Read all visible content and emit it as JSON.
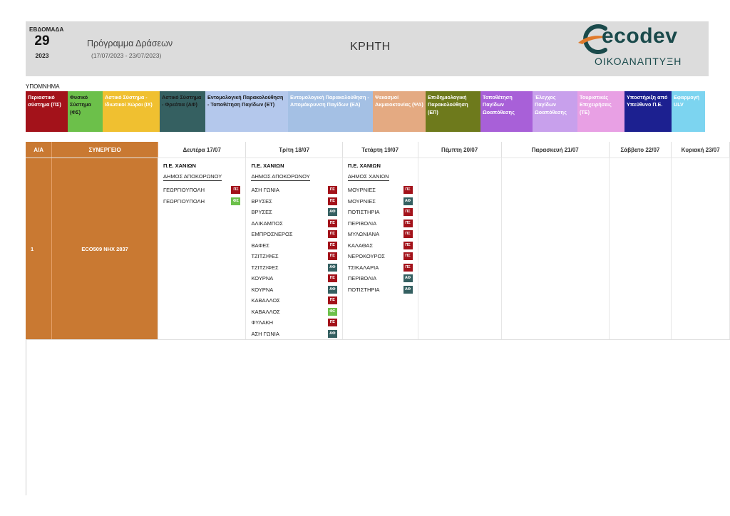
{
  "header": {
    "week_label": "ΕΒΔΟΜΑΔΑ",
    "week_number": "29",
    "year": "2023",
    "program_title": "Πρόγραμμα Δράσεων",
    "program_dates": "(17/07/2023 - 23/07/2023)",
    "region": "ΚΡΗΤΗ",
    "logo_text": "ecodev",
    "logo_subtitle": "ΟΙΚΟΑΝΑΠΤΥΞΗ",
    "logo_color": "#1a4a4b",
    "logo_accent": "#e07a2b"
  },
  "legend": {
    "title": "ΥΠΟΜΝΗΜΑ",
    "items": [
      {
        "label": "Περιαστικό σύστημα (ΠΣ)",
        "bg": "#a3121a",
        "fg": "#ffffff"
      },
      {
        "label": "Φυσικό Σύστημα (ΦΣ)",
        "bg": "#6cc04a",
        "fg": "#1a1a1a"
      },
      {
        "label": "Αστικό Σύστημα - Ιδιωτικοί Χώροι (ΙΧ)",
        "bg": "#f0c030",
        "fg": "#ffffff"
      },
      {
        "label": "Αστικό Σύστημα - Φρεάτια (ΑΦ)",
        "bg": "#356061",
        "fg": "#1a1a1a"
      },
      {
        "label": "Εντομολογική Παρακολούθηση - Τοποθέτηση Παγίδων (ΕΤ)",
        "bg": "#b4c8ec",
        "fg": "#1a1a1a"
      },
      {
        "label": "Εντομολογική Παρακολούθηση - Απομάκρυνση Παγίδων (ΕΑ)",
        "bg": "#a4c0e4",
        "fg": "#ffffff"
      },
      {
        "label": "Ψεκασμοί Ακμαιοκτονίας (ΨΑ)",
        "bg": "#e4aa82",
        "fg": "#ffffff"
      },
      {
        "label": "Επιδημιολογική Παρακολούθηση (ΕΠ)",
        "bg": "#6e7a1c",
        "fg": "#ffffff"
      },
      {
        "label": "Τοποθέτηση Παγίδων Ωοαπόθεσης",
        "bg": "#a860d8",
        "fg": "#ffffff"
      },
      {
        "label": "Έλεγχος Παγίδων Ωοαπόθεσης",
        "bg": "#c8a0ec",
        "fg": "#ffffff"
      },
      {
        "label": "Τουριστικές Επιχειρήσεις (ΤΕ)",
        "bg": "#e8a0e4",
        "fg": "#ffffff"
      },
      {
        "label": "Υποστήριξη από Υπεύθυνο Π.Ε.",
        "bg": "#1c2090",
        "fg": "#ffffff"
      },
      {
        "label": "Εφαρμογή ULV",
        "bg": "#7cd4f0",
        "fg": "#ffffff"
      }
    ]
  },
  "badge_colors": {
    "ΠΣ": "#a3121a",
    "ΑΦ": "#356061",
    "ΦΣ": "#6cc04a"
  },
  "table": {
    "headers": {
      "aa": "Α/Α",
      "synergeio": "ΣΥΝΕΡΓΕΙΟ",
      "days": [
        "Δευτέρα 17/07",
        "Τρίτη 18/07",
        "Τετάρτη 19/07",
        "Πέμπτη 20/07",
        "Παρασκευή 21/07",
        "Σάββατο 22/07",
        "Κυριακή 23/07"
      ]
    },
    "rows": [
      {
        "aa": "1",
        "synergeio": "ECO509  ΝΗΧ 2837",
        "days": [
          {
            "pe": "Π.Ε. ΧΑΝΙΩΝ",
            "dimos": "ΔΗΜΟΣ ΑΠΟΚΟΡΩΝΟΥ",
            "entries": [
              {
                "place": "ΓΕΩΡΓΙΟΥΠΟΛΗ",
                "code": "ΠΣ"
              },
              {
                "place": "ΓΕΩΡΓΙΟΥΠΟΛΗ",
                "code": "ΦΣ"
              }
            ]
          },
          {
            "pe": "Π.Ε. ΧΑΝΙΩΝ",
            "dimos": "ΔΗΜΟΣ ΑΠΟΚΟΡΩΝΟΥ",
            "entries": [
              {
                "place": "ΑΣΗ ΓΩΝΙΑ",
                "code": "ΠΣ"
              },
              {
                "place": "ΒΡΥΣΕΣ",
                "code": "ΠΣ"
              },
              {
                "place": "ΒΡΥΣΕΣ",
                "code": "ΑΦ"
              },
              {
                "place": "ΑΛΙΚΑΜΠΟΣ",
                "code": "ΠΣ"
              },
              {
                "place": "ΕΜΠΡΟΣΝΕΡΟΣ",
                "code": "ΠΣ"
              },
              {
                "place": "ΒΑΦΕΣ",
                "code": "ΠΣ"
              },
              {
                "place": "ΤΖΙΤΖΙΦΕΣ",
                "code": "ΠΣ"
              },
              {
                "place": "ΤΖΙΤΖΙΦΕΣ",
                "code": "ΑΦ"
              },
              {
                "place": "ΚΟΥΡΝΑ",
                "code": "ΠΣ"
              },
              {
                "place": "ΚΟΥΡΝΑ",
                "code": "ΑΦ"
              },
              {
                "place": "ΚΑΒΑΛΛΟΣ",
                "code": "ΠΣ"
              },
              {
                "place": "ΚΑΒΑΛΛΟΣ",
                "code": "ΦΣ"
              },
              {
                "place": "ΦΥΛΑΚΗ",
                "code": "ΠΣ"
              },
              {
                "place": "ΑΣΗ ΓΩΝΙΑ",
                "code": "ΑΦ"
              }
            ]
          },
          {
            "pe": "Π.Ε. ΧΑΝΙΩΝ",
            "dimos": "ΔΗΜΟΣ ΧΑΝΙΩΝ",
            "entries": [
              {
                "place": "ΜΟΥΡΝΙΕΣ",
                "code": "ΠΣ"
              },
              {
                "place": "ΜΟΥΡΝΙΕΣ",
                "code": "ΑΦ"
              },
              {
                "place": "ΠΟΤΙΣΤΗΡΙΑ",
                "code": "ΠΣ"
              },
              {
                "place": "ΠΕΡΙΒΟΛΙΑ",
                "code": "ΠΣ"
              },
              {
                "place": "ΜΥΛΩΝΙΑΝΑ",
                "code": "ΠΣ"
              },
              {
                "place": "ΚΑΛΑΘΑΣ",
                "code": "ΠΣ"
              },
              {
                "place": "ΝΕΡΟΚΟΥΡΟΣ",
                "code": "ΠΣ"
              },
              {
                "place": "ΤΣΙΚΑΛΑΡΙΑ",
                "code": "ΠΣ"
              },
              {
                "place": "ΠΕΡΙΒΟΛΙΑ",
                "code": "ΑΦ"
              },
              {
                "place": "ΠΟΤΙΣΤΗΡΙΑ",
                "code": "ΑΦ"
              }
            ]
          },
          null,
          null,
          null,
          null
        ]
      }
    ]
  }
}
